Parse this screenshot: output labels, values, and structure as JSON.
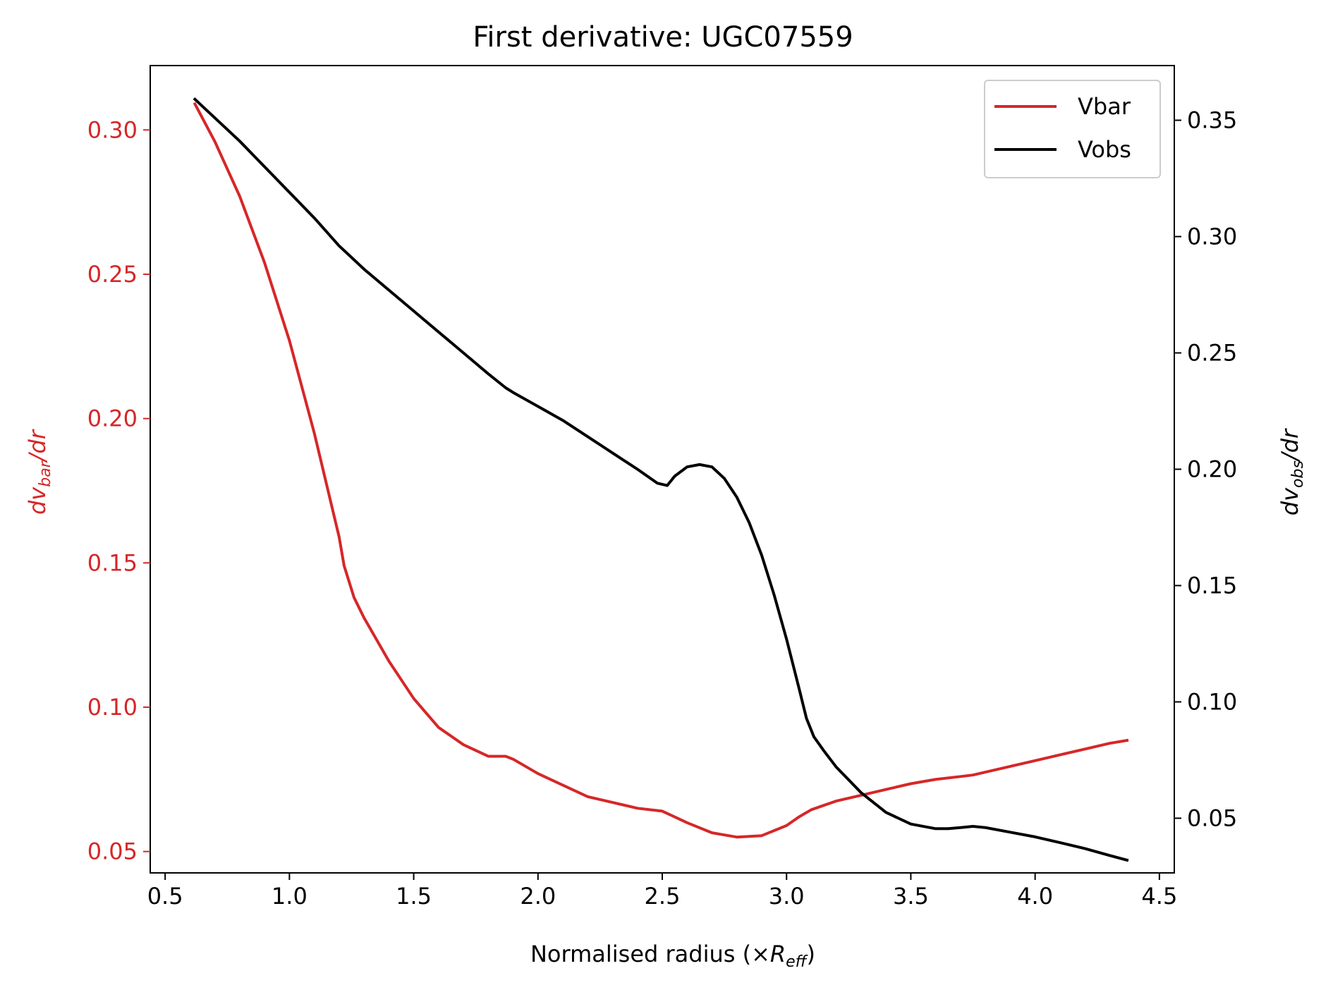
{
  "chart_data": {
    "type": "line",
    "title": "First derivative: UGC07559",
    "xlabel": {
      "main": "Normalised radius (×",
      "italic": "R",
      "sub": "eff",
      "close": ")"
    },
    "ylabel_left": {
      "d": "dv",
      "sub": "bar",
      "rest": "/dr"
    },
    "ylabel_right": {
      "d": "dv",
      "sub": "obs",
      "rest": "/dr"
    },
    "xlim": [
      0.44,
      4.56
    ],
    "ylim_left": [
      0.0426,
      0.3223
    ],
    "ylim_right": [
      0.0265,
      0.3735
    ],
    "x_ticks": [
      "0.5",
      "1.0",
      "1.5",
      "2.0",
      "2.5",
      "3.0",
      "3.5",
      "4.0",
      "4.5"
    ],
    "y_left_ticks": [
      "0.05",
      "0.10",
      "0.15",
      "0.20",
      "0.25",
      "0.30"
    ],
    "y_right_ticks": [
      "0.05",
      "0.10",
      "0.15",
      "0.20",
      "0.25",
      "0.30",
      "0.35"
    ],
    "legend": {
      "position": "top-right",
      "entries": [
        "Vbar",
        "Vobs"
      ]
    },
    "colors": {
      "vbar": "#d62728",
      "vobs": "#000000",
      "left_axis": "#d62728",
      "right_axis": "#000000"
    },
    "series": [
      {
        "name": "Vbar",
        "axis": "left",
        "x": [
          0.62,
          0.7,
          0.8,
          0.9,
          1.0,
          1.1,
          1.2,
          1.22,
          1.26,
          1.3,
          1.4,
          1.5,
          1.6,
          1.7,
          1.8,
          1.87,
          1.9,
          2.0,
          2.1,
          2.2,
          2.3,
          2.4,
          2.5,
          2.55,
          2.6,
          2.7,
          2.8,
          2.9,
          3.0,
          3.05,
          3.1,
          3.15,
          3.2,
          3.3,
          3.4,
          3.5,
          3.6,
          3.7,
          3.75,
          3.8,
          3.9,
          4.0,
          4.1,
          4.2,
          4.3,
          4.37
        ],
        "values": [
          0.309,
          0.296,
          0.277,
          0.254,
          0.227,
          0.195,
          0.159,
          0.149,
          0.138,
          0.131,
          0.116,
          0.103,
          0.093,
          0.087,
          0.083,
          0.083,
          0.082,
          0.077,
          0.073,
          0.069,
          0.067,
          0.065,
          0.064,
          0.062,
          0.06,
          0.0565,
          0.055,
          0.0555,
          0.059,
          0.062,
          0.0645,
          0.066,
          0.0675,
          0.0695,
          0.0715,
          0.0735,
          0.075,
          0.076,
          0.0765,
          0.0775,
          0.0795,
          0.0815,
          0.0835,
          0.0855,
          0.0875,
          0.0885
        ]
      },
      {
        "name": "Vobs",
        "axis": "right",
        "x": [
          0.62,
          0.7,
          0.8,
          0.9,
          1.0,
          1.1,
          1.2,
          1.25,
          1.3,
          1.4,
          1.5,
          1.6,
          1.7,
          1.8,
          1.87,
          1.9,
          2.0,
          2.1,
          2.2,
          2.3,
          2.4,
          2.48,
          2.52,
          2.55,
          2.6,
          2.65,
          2.7,
          2.75,
          2.8,
          2.85,
          2.9,
          2.95,
          3.0,
          3.05,
          3.08,
          3.11,
          3.15,
          3.2,
          3.3,
          3.4,
          3.5,
          3.6,
          3.65,
          3.7,
          3.75,
          3.8,
          3.9,
          4.0,
          4.1,
          4.2,
          4.3,
          4.37
        ],
        "values": [
          0.359,
          0.351,
          0.341,
          0.33,
          0.319,
          0.308,
          0.296,
          0.291,
          0.286,
          0.277,
          0.268,
          0.259,
          0.25,
          0.241,
          0.235,
          0.233,
          0.227,
          0.221,
          0.214,
          0.207,
          0.2,
          0.194,
          0.193,
          0.197,
          0.201,
          0.202,
          0.201,
          0.196,
          0.188,
          0.177,
          0.163,
          0.146,
          0.127,
          0.106,
          0.093,
          0.085,
          0.079,
          0.072,
          0.061,
          0.0525,
          0.0475,
          0.0455,
          0.0455,
          0.046,
          0.0465,
          0.046,
          0.044,
          0.042,
          0.0395,
          0.037,
          0.034,
          0.032
        ]
      }
    ]
  }
}
